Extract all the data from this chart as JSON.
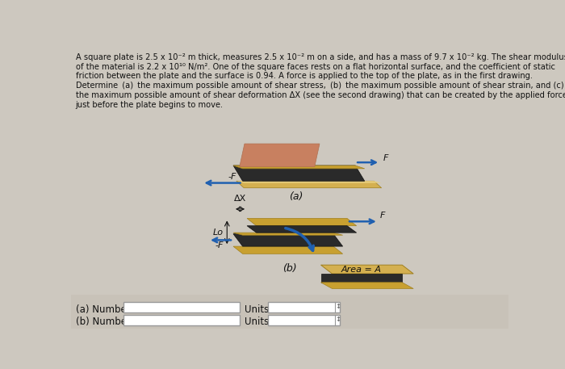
{
  "background_color": "#cdc8bf",
  "text_color": "#111111",
  "plate_dark": "#2a2a2a",
  "plate_gold": "#c8a030",
  "plate_gold_light": "#d4b050",
  "plate_gold_edge": "#a08020",
  "arrow_color": "#2060b0",
  "hand_color": "#c88060",
  "label_a": "(a)",
  "label_b": "(b)",
  "Lo_label": "Lo",
  "DX_label": "ΔX",
  "F_label": "F",
  "neg_F_label": "-F",
  "area_label": "Area = A",
  "answer_a_label": "(a) Number",
  "answer_b_label": "(b) Number",
  "units_label": "Units"
}
